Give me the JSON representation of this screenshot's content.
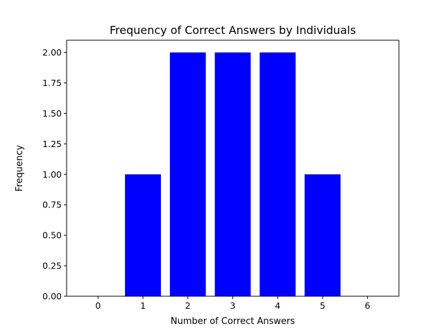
{
  "chart_data": {
    "type": "bar",
    "title": "Frequency of Correct Answers by Individuals",
    "xlabel": "Number of Correct Answers",
    "ylabel": "Frequency",
    "categories": [
      1,
      2,
      3,
      4,
      5
    ],
    "values": [
      1,
      2,
      2,
      2,
      1
    ],
    "bar_color": "#0000ff",
    "xlim": [
      -0.7,
      6.7
    ],
    "ylim": [
      0,
      2.1
    ],
    "xticks": [
      "0",
      "1",
      "2",
      "3",
      "4",
      "5",
      "6"
    ],
    "yticks": [
      "0.00",
      "0.25",
      "0.50",
      "0.75",
      "1.00",
      "1.25",
      "1.50",
      "1.75",
      "2.00"
    ],
    "grid": false,
    "legend": "none"
  }
}
